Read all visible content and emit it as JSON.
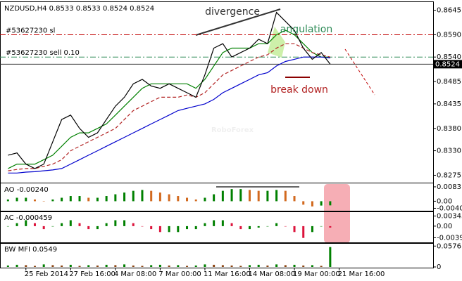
{
  "chart_data": [
    {
      "type": "line",
      "title": "NZDUSD,H4  0.8533 0.8533 0.8524 0.8524",
      "watermark": "RoboForex",
      "categories": [
        null,
        null,
        "25 Feb 2014",
        null,
        null,
        null,
        null,
        "27 Feb 16:00",
        null,
        null,
        null,
        null,
        "4 Mar 08:00",
        null,
        null,
        null,
        null,
        "7 Mar 00:00",
        null,
        null,
        null,
        null,
        "11 Mar 16:00",
        null,
        null,
        null,
        null,
        "14 Mar 08:00",
        null,
        null,
        null,
        null,
        "19 Mar 00:00",
        null,
        null,
        null,
        null,
        "21 Mar 16:00",
        null,
        null,
        null,
        null,
        null,
        null,
        null,
        null,
        null,
        null
      ],
      "values": [
        0.832,
        0.8325,
        0.83,
        0.829,
        0.83,
        0.835,
        0.84,
        0.841,
        0.838,
        0.836,
        0.837,
        0.84,
        0.843,
        0.845,
        0.848,
        0.849,
        0.8475,
        0.847,
        0.848,
        0.847,
        0.846,
        0.845,
        0.85,
        0.856,
        0.857,
        0.854,
        0.855,
        0.856,
        0.858,
        0.857,
        0.864,
        0.862,
        0.86,
        0.856,
        0.8535,
        0.855,
        0.8524,
        null,
        null,
        null,
        null,
        null,
        null,
        null,
        null,
        null,
        null,
        null
      ],
      "color": "#000000",
      "overlays": [
        {
          "color": "#008000",
          "values": [
            0.829,
            0.83,
            0.83,
            0.83,
            0.831,
            0.832,
            0.834,
            0.836,
            0.837,
            0.837,
            0.838,
            0.839,
            0.841,
            0.843,
            0.845,
            0.847,
            0.848,
            0.848,
            0.848,
            0.848,
            0.848,
            0.847,
            0.849,
            0.852,
            0.855,
            0.856,
            0.856,
            0.856,
            0.857,
            0.857,
            0.859,
            0.86,
            0.859,
            0.857,
            0.855,
            0.854,
            0.854,
            null,
            null,
            null,
            null,
            null,
            null,
            null,
            null,
            null,
            null,
            null
          ]
        },
        {
          "color": "#b22222",
          "values": [
            0.8285,
            0.8288,
            0.829,
            0.829,
            0.8295,
            0.83,
            0.831,
            0.833,
            0.834,
            0.835,
            0.836,
            0.837,
            0.838,
            0.84,
            0.842,
            0.843,
            0.844,
            0.845,
            0.845,
            0.845,
            0.8455,
            0.845,
            0.846,
            0.848,
            0.85,
            0.851,
            0.852,
            0.853,
            0.854,
            0.8545,
            0.856,
            0.857,
            0.857,
            0.856,
            0.855,
            0.8545,
            0.854,
            null,
            null,
            null,
            null,
            null,
            null,
            null,
            null,
            null,
            null,
            null
          ]
        },
        {
          "color": "#0000cd",
          "values": [
            0.828,
            0.828,
            0.8282,
            0.8283,
            0.8285,
            0.8287,
            0.829,
            0.83,
            0.831,
            0.832,
            0.833,
            0.834,
            0.835,
            0.836,
            0.837,
            0.838,
            0.839,
            0.84,
            0.841,
            0.842,
            0.8425,
            0.843,
            0.8435,
            0.8445,
            0.846,
            0.847,
            0.848,
            0.849,
            0.85,
            0.8505,
            0.852,
            0.853,
            0.8535,
            0.854,
            0.854,
            0.854,
            0.8538,
            null,
            null,
            null,
            null,
            null,
            null,
            null,
            null,
            null,
            null,
            null
          ]
        }
      ],
      "levels": [
        {
          "text": "#53627230 sl",
          "value": 0.859,
          "color": "#c00000"
        },
        {
          "text": "#53627230 sell 0.10",
          "value": 0.854,
          "color": "#2e8b57"
        }
      ],
      "price_label": {
        "value": 0.8524,
        "label": "0.8524"
      },
      "annotations": [
        "divergence",
        "angulation",
        "break down"
      ],
      "ylim": [
        0.826,
        0.866
      ],
      "yticks": [
        0.8645,
        {
          "value": 0.859,
          "label": "0.8590"
        },
        {
          "value": 0.854,
          "label": "0.8540"
        },
        0.8485,
        0.8435,
        {
          "value": 0.838,
          "label": "0.8380"
        },
        {
          "value": 0.833,
          "label": "0.8330"
        },
        0.8275
      ]
    },
    {
      "type": "bar",
      "title": "AO -0.00240",
      "values": [
        0.001,
        0.002,
        0.002,
        0.001,
        0,
        0.001,
        0.002,
        0.003,
        0.003,
        0.002,
        0.002,
        0.003,
        0.004,
        0.005,
        0.006,
        0.0065,
        0.006,
        0.005,
        0.004,
        0.003,
        0.002,
        0.001,
        0.002,
        0.004,
        0.006,
        0.007,
        0.007,
        0.0065,
        0.006,
        0.006,
        0.0065,
        0.006,
        0.003,
        -0.002,
        -0.003,
        -0.0025,
        -0.0024,
        null,
        null,
        null,
        null,
        null,
        null,
        null,
        null,
        null,
        null,
        null
      ],
      "up_color": "#008000",
      "down_color": "#d2691e",
      "ylim": [
        -0.0055,
        0.0095
      ],
      "yticks": [
        0.0083,
        {
          "value": 0,
          "label": "0.00"
        },
        -0.00407
      ]
    },
    {
      "type": "bar",
      "title": "AC -0.000459",
      "values": [
        0,
        0.001,
        0.002,
        0.001,
        -0.001,
        0,
        0.001,
        0.002,
        0.001,
        -0.001,
        -0.001,
        0.001,
        0.002,
        0.002,
        0.001,
        0,
        -0.001,
        -0.002,
        -0.002,
        -0.002,
        -0.001,
        -0.001,
        0.001,
        0.002,
        0.002,
        0.001,
        -0.001,
        -0.001,
        -0.0005,
        0,
        0.001,
        0,
        -0.002,
        -0.004,
        -0.002,
        0,
        -0.0005,
        null,
        null,
        null,
        null,
        null,
        null,
        null,
        null,
        null,
        null,
        null
      ],
      "up_color": "#008000",
      "down_color": "#dc143c",
      "ylim": [
        -0.0055,
        0.0045
      ],
      "yticks": [
        0.00343,
        {
          "value": 0,
          "label": "0.00"
        },
        -0.00394
      ]
    },
    {
      "type": "bar",
      "title": "BW MFI 0.0549",
      "values": [
        0.004,
        0.006,
        0.005,
        0.003,
        0.007,
        0.005,
        0.004,
        0.006,
        0.003,
        0.005,
        0.004,
        0.006,
        0.005,
        0.007,
        0.004,
        0.003,
        0.005,
        0.006,
        0.004,
        0.005,
        0.003,
        0.004,
        0.007,
        0.006,
        0.005,
        0.004,
        0.003,
        0.005,
        0.006,
        0.004,
        0.007,
        0.005,
        0.006,
        0.004,
        0.005,
        0.003,
        0.0549,
        null,
        null,
        null,
        null,
        null,
        null,
        null,
        null,
        null,
        null,
        null
      ],
      "up_color": "#008000",
      "down_color": "#8b4513",
      "ylim": [
        0,
        0.062
      ],
      "yticks": [
        0.0576,
        0
      ]
    }
  ]
}
